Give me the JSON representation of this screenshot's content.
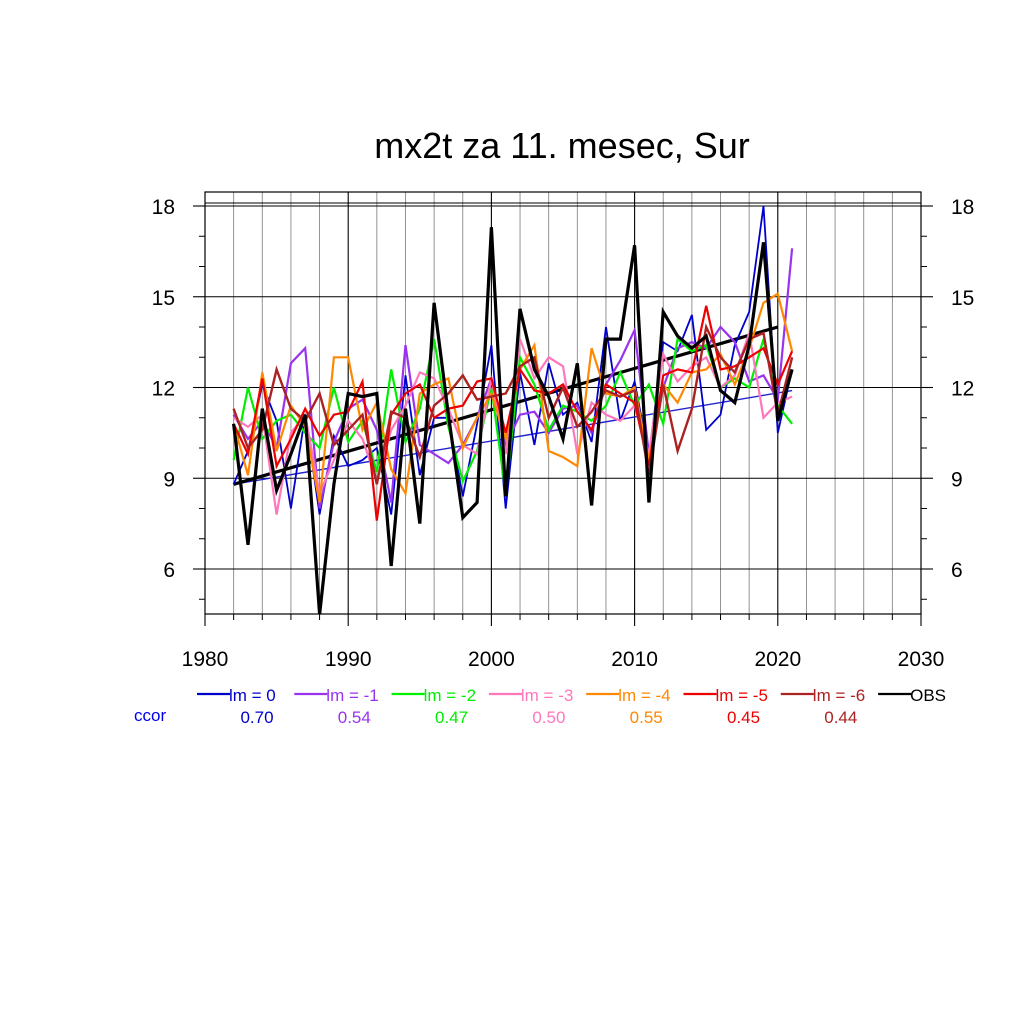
{
  "chart_data": {
    "type": "line",
    "title": "mx2t za 11. mesec, Sur",
    "xlabel": "",
    "ylabel": "",
    "xlim": [
      1980,
      2030
    ],
    "ylim": [
      4.5,
      18.5
    ],
    "x_ticks": [
      1980,
      1990,
      2000,
      2010,
      2020,
      2030
    ],
    "y_ticks": [
      6,
      9,
      12,
      15,
      18
    ],
    "x_tick_labels": [
      "1980",
      "1990",
      "2000",
      "2010",
      "2020",
      "2030"
    ],
    "y_tick_labels": [
      "6",
      "9",
      "12",
      "15",
      "18"
    ],
    "grid": true,
    "legend_position": "bottom",
    "ccor_label": "ccor",
    "x": [
      1982,
      1983,
      1984,
      1985,
      1986,
      1987,
      1988,
      1989,
      1990,
      1991,
      1992,
      1993,
      1994,
      1995,
      1996,
      1997,
      1998,
      1999,
      2000,
      2001,
      2002,
      2003,
      2004,
      2005,
      2006,
      2007,
      2008,
      2009,
      2010,
      2011,
      2012,
      2013,
      2014,
      2015,
      2016,
      2017,
      2018,
      2019,
      2020,
      2021
    ],
    "series": [
      {
        "name": "lm = 0",
        "ccor": "0.70",
        "color": "#0000cc",
        "width": 1.8,
        "values": [
          8.8,
          9.9,
          12.1,
          10.9,
          8.0,
          11.1,
          7.8,
          10.4,
          9.4,
          9.6,
          10.0,
          7.8,
          12.4,
          9.1,
          11.0,
          11.0,
          8.4,
          10.8,
          13.4,
          8.0,
          12.5,
          10.1,
          12.8,
          11.1,
          11.5,
          10.2,
          14.0,
          10.9,
          12.2,
          9.7,
          13.5,
          13.2,
          14.4,
          10.6,
          11.1,
          13.4,
          14.5,
          18.0,
          10.5,
          12.6
        ]
      },
      {
        "name": "lm = -1",
        "ccor": "0.54",
        "color": "#9933ee",
        "width": 2.2,
        "values": [
          11.1,
          10.3,
          10.9,
          10.0,
          12.8,
          13.3,
          8.0,
          10.2,
          11.3,
          11.6,
          10.6,
          8.2,
          13.4,
          10.1,
          9.8,
          9.5,
          10.1,
          11.0,
          12.3,
          10.1,
          11.1,
          11.2,
          10.5,
          11.3,
          11.4,
          10.5,
          12.1,
          12.9,
          13.9,
          9.8,
          12.0,
          13.3,
          13.5,
          13.3,
          14.0,
          13.5,
          12.2,
          12.4,
          11.6,
          16.6
        ]
      },
      {
        "name": "lm = -2",
        "ccor": "0.47",
        "color": "#00ee00",
        "width": 2.2,
        "values": [
          9.6,
          12.0,
          10.3,
          10.9,
          11.1,
          10.5,
          10.0,
          12.0,
          10.2,
          10.9,
          9.2,
          12.6,
          10.2,
          11.3,
          13.6,
          10.7,
          8.9,
          9.9,
          12.0,
          8.5,
          13.0,
          12.1,
          10.6,
          11.4,
          11.2,
          10.9,
          11.4,
          12.5,
          11.4,
          12.1,
          10.8,
          13.6,
          13.2,
          13.4,
          12.0,
          12.3,
          12.0,
          13.6,
          11.4,
          10.8
        ]
      },
      {
        "name": "lm = -3",
        "ccor": "0.50",
        "color": "#ff77bb",
        "width": 2.2,
        "values": [
          11.0,
          10.7,
          11.1,
          7.8,
          10.5,
          11.1,
          8.5,
          9.6,
          10.9,
          10.3,
          8.9,
          10.6,
          11.4,
          12.5,
          12.3,
          11.3,
          10.1,
          9.8,
          12.3,
          9.8,
          13.6,
          12.3,
          13.0,
          12.7,
          9.8,
          11.5,
          11.1,
          10.9,
          11.4,
          9.8,
          13.1,
          12.2,
          12.7,
          13.0,
          12.0,
          12.4,
          13.8,
          11.0,
          11.5,
          11.7
        ]
      },
      {
        "name": "lm = -4",
        "ccor": "0.55",
        "color": "#ff8800",
        "width": 2.2,
        "values": [
          10.8,
          9.1,
          12.5,
          9.9,
          11.4,
          10.7,
          8.2,
          13.0,
          13.0,
          10.6,
          11.5,
          9.3,
          8.5,
          11.8,
          12.1,
          12.3,
          10.0,
          11.0,
          11.8,
          10.3,
          12.6,
          13.4,
          9.9,
          9.7,
          9.4,
          13.3,
          11.8,
          11.7,
          12.0,
          9.6,
          12.1,
          11.5,
          12.5,
          12.6,
          13.1,
          12.1,
          13.3,
          14.8,
          15.1,
          13.2
        ]
      },
      {
        "name": "lm = -5",
        "ccor": "0.45",
        "color": "#ee0000",
        "width": 2.2,
        "values": [
          10.8,
          9.8,
          12.3,
          9.4,
          10.3,
          11.3,
          10.4,
          11.1,
          11.2,
          12.2,
          7.6,
          11.1,
          11.8,
          12.1,
          11.0,
          11.3,
          11.4,
          12.2,
          12.3,
          10.5,
          12.6,
          11.9,
          11.8,
          12.1,
          11.2,
          10.6,
          12.1,
          11.8,
          11.5,
          9.4,
          12.4,
          12.6,
          12.5,
          14.7,
          12.6,
          12.7,
          13.0,
          13.3,
          12.1,
          13.2
        ]
      },
      {
        "name": "lm = -6",
        "ccor": "0.44",
        "color": "#aa2222",
        "width": 2.4,
        "values": [
          11.3,
          10.0,
          10.6,
          12.6,
          11.3,
          10.9,
          11.8,
          10.1,
          10.6,
          11.1,
          8.8,
          11.2,
          11.0,
          9.7,
          11.4,
          11.8,
          12.4,
          11.6,
          11.7,
          11.8,
          12.7,
          13.0,
          11.0,
          12.0,
          10.7,
          11.2,
          11.9,
          11.7,
          11.9,
          9.1,
          12.1,
          9.9,
          11.3,
          14.0,
          13.0,
          12.5,
          13.6,
          13.8,
          11.1,
          13.0
        ]
      },
      {
        "name": "OBS",
        "ccor": "",
        "color": "#000000",
        "width": 3.2,
        "values": [
          10.8,
          6.8,
          11.3,
          8.6,
          9.8,
          11.1,
          4.5,
          8.8,
          11.8,
          11.7,
          11.8,
          6.1,
          11.3,
          7.5,
          14.8,
          11.1,
          7.7,
          8.2,
          17.3,
          8.4,
          14.6,
          12.6,
          11.7,
          10.3,
          12.8,
          8.1,
          13.6,
          13.6,
          16.7,
          8.2,
          14.5,
          13.7,
          13.3,
          13.7,
          11.9,
          11.5,
          13.4,
          16.8,
          10.9,
          12.6
        ]
      }
    ],
    "trend_lines": [
      {
        "series": "lm = 0",
        "color": "#2222cc",
        "width": 1.4,
        "x": [
          1982,
          2021
        ],
        "y": [
          8.8,
          11.9
        ]
      },
      {
        "series": "OBS",
        "color": "#000000",
        "width": 3.2,
        "x": [
          1982,
          2020
        ],
        "y": [
          8.8,
          14.0
        ]
      }
    ]
  }
}
